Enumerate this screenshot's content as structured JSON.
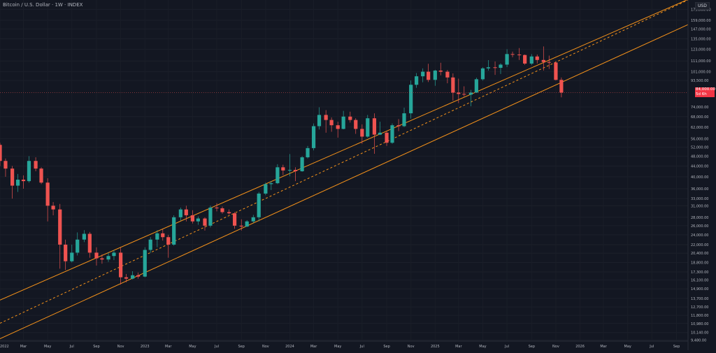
{
  "header": {
    "title": "Bitcoin / U.S. Dollar · 1W · INDEX",
    "currency": "USD"
  },
  "last_price": {
    "value": "84,000.00",
    "countdown": "5d 6h"
  },
  "colors": {
    "background": "#131722",
    "up": "#26a69a",
    "down": "#ef5350",
    "channel": "#f7931a",
    "axis_text": "#b2b5be"
  },
  "chart_data": {
    "type": "candlestick",
    "title": "Bitcoin / U.S. Dollar · 1W · INDEX",
    "y_scale": "log",
    "ylim": [
      9400,
      190000
    ],
    "xlim": [
      "2022-01-01",
      "2026-09-30"
    ],
    "y_ticks": [
      {
        "v": 9480,
        "label": "9,480.00"
      },
      {
        "v": 10140,
        "label": "10,140.00"
      },
      {
        "v": 10980,
        "label": "10,980.00"
      },
      {
        "v": 11800,
        "label": "11,800.00"
      },
      {
        "v": 12700,
        "label": "12,700.00"
      },
      {
        "v": 13700,
        "label": "13,700.00"
      },
      {
        "v": 14900,
        "label": "14,900.00"
      },
      {
        "v": 16100,
        "label": "16,100.00"
      },
      {
        "v": 17300,
        "label": "17,300.00"
      },
      {
        "v": 18800,
        "label": "18,800.00"
      },
      {
        "v": 20400,
        "label": "20,400.00"
      },
      {
        "v": 22000,
        "label": "22,000.00"
      },
      {
        "v": 24000,
        "label": "24,000.00"
      },
      {
        "v": 26000,
        "label": "26,000.00"
      },
      {
        "v": 28000,
        "label": "28,000.00"
      },
      {
        "v": 31000,
        "label": "31,000.00"
      },
      {
        "v": 33000,
        "label": "33,000.00"
      },
      {
        "v": 36000,
        "label": "36,000.00"
      },
      {
        "v": 40000,
        "label": "40,000.00"
      },
      {
        "v": 44000,
        "label": "44,000.00"
      },
      {
        "v": 48000,
        "label": "48,000.00"
      },
      {
        "v": 52000,
        "label": "52,000.00"
      },
      {
        "v": 56000,
        "label": "56,000.00"
      },
      {
        "v": 62000,
        "label": "62,000.00"
      },
      {
        "v": 68000,
        "label": "68,000.00"
      },
      {
        "v": 74000,
        "label": "74,000.00"
      },
      {
        "v": 93500,
        "label": "93,500.00"
      },
      {
        "v": 101000,
        "label": "101,000.00"
      },
      {
        "v": 111000,
        "label": "111,000.00"
      },
      {
        "v": 123000,
        "label": "123,000.00"
      },
      {
        "v": 135000,
        "label": "135,000.00"
      },
      {
        "v": 147000,
        "label": "147,000.00"
      },
      {
        "v": 159000,
        "label": "159,000.00"
      },
      {
        "v": 175000,
        "label": "175,000.00"
      }
    ],
    "x_ticks": [
      {
        "t": "2022-01-01",
        "label": "2022"
      },
      {
        "t": "2022-03-01",
        "label": "Mar"
      },
      {
        "t": "2022-05-01",
        "label": "May"
      },
      {
        "t": "2022-07-01",
        "label": "Jul"
      },
      {
        "t": "2022-09-01",
        "label": "Sep"
      },
      {
        "t": "2022-11-01",
        "label": "Nov"
      },
      {
        "t": "2023-01-01",
        "label": "2023"
      },
      {
        "t": "2023-03-01",
        "label": "Mar"
      },
      {
        "t": "2023-05-01",
        "label": "May"
      },
      {
        "t": "2023-07-01",
        "label": "Jul"
      },
      {
        "t": "2023-09-01",
        "label": "Sep"
      },
      {
        "t": "2023-11-01",
        "label": "Nov"
      },
      {
        "t": "2024-01-01",
        "label": "2024"
      },
      {
        "t": "2024-03-01",
        "label": "Mar"
      },
      {
        "t": "2024-05-01",
        "label": "May"
      },
      {
        "t": "2024-07-01",
        "label": "Jul"
      },
      {
        "t": "2024-09-01",
        "label": "Sep"
      },
      {
        "t": "2024-11-01",
        "label": "Nov"
      },
      {
        "t": "2025-01-01",
        "label": "2025"
      },
      {
        "t": "2025-03-01",
        "label": "Mar"
      },
      {
        "t": "2025-05-01",
        "label": "May"
      },
      {
        "t": "2025-07-01",
        "label": "Jul"
      },
      {
        "t": "2025-09-01",
        "label": "Sep"
      },
      {
        "t": "2025-11-01",
        "label": "Nov"
      },
      {
        "t": "2026-01-01",
        "label": "2026"
      },
      {
        "t": "2026-03-01",
        "label": "Mar"
      },
      {
        "t": "2026-05-01",
        "label": "May"
      },
      {
        "t": "2026-07-01",
        "label": "Jul"
      },
      {
        "t": "2026-09-01",
        "label": "Sep"
      }
    ],
    "channel": {
      "upper": [
        {
          "t": "2022-01-01",
          "v": 13500
        },
        {
          "t": "2026-09-30",
          "v": 191000
        }
      ],
      "middle": [
        {
          "t": "2022-01-01",
          "v": 11000
        },
        {
          "t": "2026-09-30",
          "v": 190000
        }
      ],
      "lower": [
        {
          "t": "2022-01-01",
          "v": 9600
        },
        {
          "t": "2026-09-30",
          "v": 153000
        }
      ]
    },
    "last_price_line": 84000,
    "candles": [
      {
        "t": "2022-01-01",
        "o": 53000,
        "h": 54000,
        "c": 46000,
        "l": 44000
      },
      {
        "t": "2022-01-15",
        "o": 46000,
        "h": 47000,
        "c": 43000,
        "l": 40000
      },
      {
        "t": "2022-02-01",
        "o": 43000,
        "h": 44000,
        "c": 37000,
        "l": 33000
      },
      {
        "t": "2022-02-15",
        "o": 37000,
        "h": 41000,
        "c": 39000,
        "l": 35000
      },
      {
        "t": "2022-03-01",
        "o": 39000,
        "h": 40500,
        "c": 38500,
        "l": 36000
      },
      {
        "t": "2022-03-15",
        "o": 38500,
        "h": 48000,
        "c": 46000,
        "l": 38000
      },
      {
        "t": "2022-04-01",
        "o": 46000,
        "h": 47500,
        "c": 43000,
        "l": 42000
      },
      {
        "t": "2022-04-15",
        "o": 43000,
        "h": 43500,
        "c": 38000,
        "l": 37500
      },
      {
        "t": "2022-05-01",
        "o": 38000,
        "h": 39500,
        "c": 31000,
        "l": 27000
      },
      {
        "t": "2022-05-15",
        "o": 31000,
        "h": 32000,
        "c": 30000,
        "l": 28500
      },
      {
        "t": "2022-06-01",
        "o": 30000,
        "h": 31500,
        "c": 22000,
        "l": 17800
      },
      {
        "t": "2022-06-15",
        "o": 22000,
        "h": 23000,
        "c": 19000,
        "l": 17600
      },
      {
        "t": "2022-07-01",
        "o": 19000,
        "h": 22000,
        "c": 20500,
        "l": 18800
      },
      {
        "t": "2022-07-15",
        "o": 20500,
        "h": 24500,
        "c": 23000,
        "l": 20000
      },
      {
        "t": "2022-08-01",
        "o": 23000,
        "h": 25000,
        "c": 24200,
        "l": 22500
      },
      {
        "t": "2022-08-15",
        "o": 24200,
        "h": 24600,
        "c": 20500,
        "l": 19600
      },
      {
        "t": "2022-09-01",
        "o": 20500,
        "h": 21500,
        "c": 19500,
        "l": 18300
      },
      {
        "t": "2022-09-15",
        "o": 19500,
        "h": 20200,
        "c": 19300,
        "l": 18600
      },
      {
        "t": "2022-10-01",
        "o": 19300,
        "h": 20500,
        "c": 19900,
        "l": 18900
      },
      {
        "t": "2022-10-15",
        "o": 19900,
        "h": 21000,
        "c": 20500,
        "l": 19200
      },
      {
        "t": "2022-11-01",
        "o": 20500,
        "h": 21400,
        "c": 16500,
        "l": 15500
      },
      {
        "t": "2022-11-15",
        "o": 16500,
        "h": 17000,
        "c": 16300,
        "l": 15800
      },
      {
        "t": "2022-12-01",
        "o": 16300,
        "h": 17400,
        "c": 16800,
        "l": 16200
      },
      {
        "t": "2022-12-15",
        "o": 16800,
        "h": 17200,
        "c": 16600,
        "l": 16300
      },
      {
        "t": "2023-01-01",
        "o": 16600,
        "h": 21500,
        "c": 21000,
        "l": 16500
      },
      {
        "t": "2023-01-15",
        "o": 21000,
        "h": 23500,
        "c": 23000,
        "l": 20500
      },
      {
        "t": "2023-02-01",
        "o": 23000,
        "h": 25000,
        "c": 24300,
        "l": 21500
      },
      {
        "t": "2023-02-15",
        "o": 24300,
        "h": 25200,
        "c": 23500,
        "l": 22800
      },
      {
        "t": "2023-03-01",
        "o": 23500,
        "h": 24000,
        "c": 22000,
        "l": 19600
      },
      {
        "t": "2023-03-15",
        "o": 22000,
        "h": 28500,
        "c": 28000,
        "l": 21800
      },
      {
        "t": "2023-04-01",
        "o": 28000,
        "h": 30500,
        "c": 30000,
        "l": 27200
      },
      {
        "t": "2023-04-15",
        "o": 30000,
        "h": 31000,
        "c": 28500,
        "l": 27000
      },
      {
        "t": "2023-05-01",
        "o": 28500,
        "h": 29800,
        "c": 27000,
        "l": 26500
      },
      {
        "t": "2023-05-15",
        "o": 27000,
        "h": 28200,
        "c": 27700,
        "l": 26200
      },
      {
        "t": "2023-06-01",
        "o": 27700,
        "h": 28000,
        "c": 26000,
        "l": 24900
      },
      {
        "t": "2023-06-15",
        "o": 26000,
        "h": 31000,
        "c": 30500,
        "l": 25600
      },
      {
        "t": "2023-07-01",
        "o": 30500,
        "h": 31700,
        "c": 30300,
        "l": 29500
      },
      {
        "t": "2023-07-15",
        "o": 30300,
        "h": 30800,
        "c": 29300,
        "l": 28900
      },
      {
        "t": "2023-08-01",
        "o": 29300,
        "h": 30000,
        "c": 29000,
        "l": 28700
      },
      {
        "t": "2023-08-15",
        "o": 29000,
        "h": 29300,
        "c": 26000,
        "l": 25300
      },
      {
        "t": "2023-09-01",
        "o": 26000,
        "h": 27500,
        "c": 25800,
        "l": 24900
      },
      {
        "t": "2023-09-15",
        "o": 25800,
        "h": 27300,
        "c": 27000,
        "l": 25700
      },
      {
        "t": "2023-10-01",
        "o": 27000,
        "h": 28600,
        "c": 28000,
        "l": 26600
      },
      {
        "t": "2023-10-15",
        "o": 28000,
        "h": 35000,
        "c": 34500,
        "l": 27000
      },
      {
        "t": "2023-11-01",
        "o": 34500,
        "h": 38000,
        "c": 37500,
        "l": 34000
      },
      {
        "t": "2023-11-15",
        "o": 37500,
        "h": 38500,
        "c": 37800,
        "l": 35600
      },
      {
        "t": "2023-12-01",
        "o": 37800,
        "h": 44700,
        "c": 43500,
        "l": 37500
      },
      {
        "t": "2023-12-15",
        "o": 43500,
        "h": 44500,
        "c": 42300,
        "l": 40600
      },
      {
        "t": "2024-01-01",
        "o": 42300,
        "h": 48900,
        "c": 42500,
        "l": 40200
      },
      {
        "t": "2024-01-15",
        "o": 42500,
        "h": 43500,
        "c": 42000,
        "l": 38500
      },
      {
        "t": "2024-02-01",
        "o": 42000,
        "h": 48000,
        "c": 47500,
        "l": 41800
      },
      {
        "t": "2024-02-15",
        "o": 47500,
        "h": 52500,
        "c": 51500,
        "l": 47000
      },
      {
        "t": "2024-03-01",
        "o": 51500,
        "h": 64000,
        "c": 62500,
        "l": 50500
      },
      {
        "t": "2024-03-15",
        "o": 62500,
        "h": 73800,
        "c": 69000,
        "l": 60700
      },
      {
        "t": "2024-04-01",
        "o": 69000,
        "h": 72000,
        "c": 66000,
        "l": 59000
      },
      {
        "t": "2024-04-15",
        "o": 66000,
        "h": 67500,
        "c": 63000,
        "l": 59500
      },
      {
        "t": "2024-05-01",
        "o": 63000,
        "h": 65000,
        "c": 61000,
        "l": 56500
      },
      {
        "t": "2024-05-15",
        "o": 61000,
        "h": 71500,
        "c": 68000,
        "l": 60800
      },
      {
        "t": "2024-06-01",
        "o": 68000,
        "h": 71000,
        "c": 66000,
        "l": 64500
      },
      {
        "t": "2024-06-15",
        "o": 66000,
        "h": 67000,
        "c": 61000,
        "l": 58400
      },
      {
        "t": "2024-07-01",
        "o": 61000,
        "h": 63500,
        "c": 57000,
        "l": 53500
      },
      {
        "t": "2024-07-15",
        "o": 57000,
        "h": 69000,
        "c": 67000,
        "l": 56500
      },
      {
        "t": "2024-08-01",
        "o": 67000,
        "h": 70000,
        "c": 58000,
        "l": 49000
      },
      {
        "t": "2024-08-15",
        "o": 58000,
        "h": 65000,
        "c": 59000,
        "l": 57800
      },
      {
        "t": "2024-09-01",
        "o": 59000,
        "h": 60000,
        "c": 54000,
        "l": 52500
      },
      {
        "t": "2024-09-15",
        "o": 54000,
        "h": 64000,
        "c": 63000,
        "l": 53500
      },
      {
        "t": "2024-10-01",
        "o": 63000,
        "h": 66500,
        "c": 62500,
        "l": 59800
      },
      {
        "t": "2024-10-15",
        "o": 62500,
        "h": 73600,
        "c": 70000,
        "l": 62000
      },
      {
        "t": "2024-11-01",
        "o": 70000,
        "h": 93500,
        "c": 90000,
        "l": 66800
      },
      {
        "t": "2024-11-15",
        "o": 90000,
        "h": 99800,
        "c": 97000,
        "l": 87600
      },
      {
        "t": "2024-12-01",
        "o": 97000,
        "h": 104000,
        "c": 101000,
        "l": 92000
      },
      {
        "t": "2024-12-15",
        "o": 101000,
        "h": 108300,
        "c": 94000,
        "l": 92200
      },
      {
        "t": "2025-01-01",
        "o": 94000,
        "h": 102700,
        "c": 102000,
        "l": 89200
      },
      {
        "t": "2025-01-15",
        "o": 102000,
        "h": 109300,
        "c": 101000,
        "l": 97800
      },
      {
        "t": "2025-02-01",
        "o": 101000,
        "h": 102500,
        "c": 96000,
        "l": 91200
      },
      {
        "t": "2025-02-15",
        "o": 96000,
        "h": 99500,
        "c": 84000,
        "l": 78200
      },
      {
        "t": "2025-03-01",
        "o": 84000,
        "h": 95000,
        "c": 83000,
        "l": 76600
      },
      {
        "t": "2025-03-15",
        "o": 83000,
        "h": 88800,
        "c": 82500,
        "l": 81200
      },
      {
        "t": "2025-04-01",
        "o": 82500,
        "h": 86000,
        "c": 84000,
        "l": 74500
      },
      {
        "t": "2025-04-15",
        "o": 84000,
        "h": 95800,
        "c": 94500,
        "l": 83800
      },
      {
        "t": "2025-05-01",
        "o": 94500,
        "h": 105000,
        "c": 104000,
        "l": 93400
      },
      {
        "t": "2025-05-15",
        "o": 104000,
        "h": 111900,
        "c": 105000,
        "l": 102000
      },
      {
        "t": "2025-06-01",
        "o": 105000,
        "h": 110600,
        "c": 104500,
        "l": 98200
      },
      {
        "t": "2025-06-15",
        "o": 104500,
        "h": 108800,
        "c": 107500,
        "l": 99000
      },
      {
        "t": "2025-07-01",
        "o": 107500,
        "h": 123200,
        "c": 118000,
        "l": 105200
      },
      {
        "t": "2025-07-15",
        "o": 118000,
        "h": 120500,
        "c": 117500,
        "l": 114700
      },
      {
        "t": "2025-08-01",
        "o": 117500,
        "h": 124400,
        "c": 117000,
        "l": 112000
      },
      {
        "t": "2025-08-15",
        "o": 117000,
        "h": 117500,
        "c": 108500,
        "l": 107300
      },
      {
        "t": "2025-09-01",
        "o": 108500,
        "h": 117900,
        "c": 115500,
        "l": 107200
      },
      {
        "t": "2025-09-15",
        "o": 115500,
        "h": 117500,
        "c": 112000,
        "l": 108600
      },
      {
        "t": "2025-10-01",
        "o": 112000,
        "h": 126200,
        "c": 110000,
        "l": 102000
      },
      {
        "t": "2025-10-15",
        "o": 110000,
        "h": 116400,
        "c": 109500,
        "l": 103500
      },
      {
        "t": "2025-11-01",
        "o": 109500,
        "h": 110800,
        "c": 94000,
        "l": 93500
      },
      {
        "t": "2025-11-15",
        "o": 94000,
        "h": 96000,
        "c": 84000,
        "l": 80600
      }
    ]
  }
}
